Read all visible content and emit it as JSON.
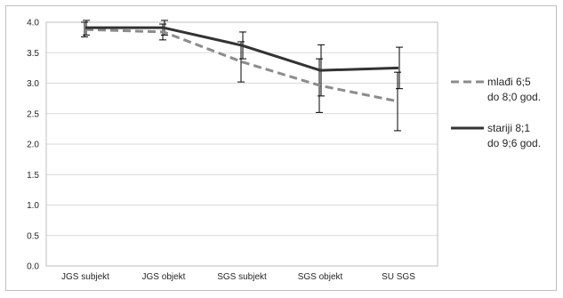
{
  "chart_data": {
    "type": "line",
    "categories": [
      "JGS subjekt",
      "JGS objekt",
      "SGS subjekt",
      "SGS  objekt",
      "SU SGS"
    ],
    "ylim": [
      0,
      4
    ],
    "yticks": [
      "0.0",
      "0.5",
      "1.0",
      "1.5",
      "2.0",
      "2.5",
      "3.0",
      "3.5",
      "4.0"
    ],
    "grid": true,
    "legend_position": "right",
    "series": [
      {
        "name_lines": [
          "mlađi 6;5",
          "do 8;0 god."
        ],
        "style": "dashed",
        "color": "#8c8c8c",
        "values": [
          3.88,
          3.84,
          3.35,
          2.96,
          2.7
        ],
        "error": [
          0.12,
          0.13,
          0.33,
          0.44,
          0.48
        ]
      },
      {
        "name_lines": [
          "stariji 8;1",
          "do 9;6 god."
        ],
        "style": "solid",
        "color": "#333333",
        "values": [
          3.91,
          3.91,
          3.62,
          3.21,
          3.25
        ],
        "error": [
          0.12,
          0.12,
          0.22,
          0.42,
          0.34
        ]
      }
    ]
  }
}
